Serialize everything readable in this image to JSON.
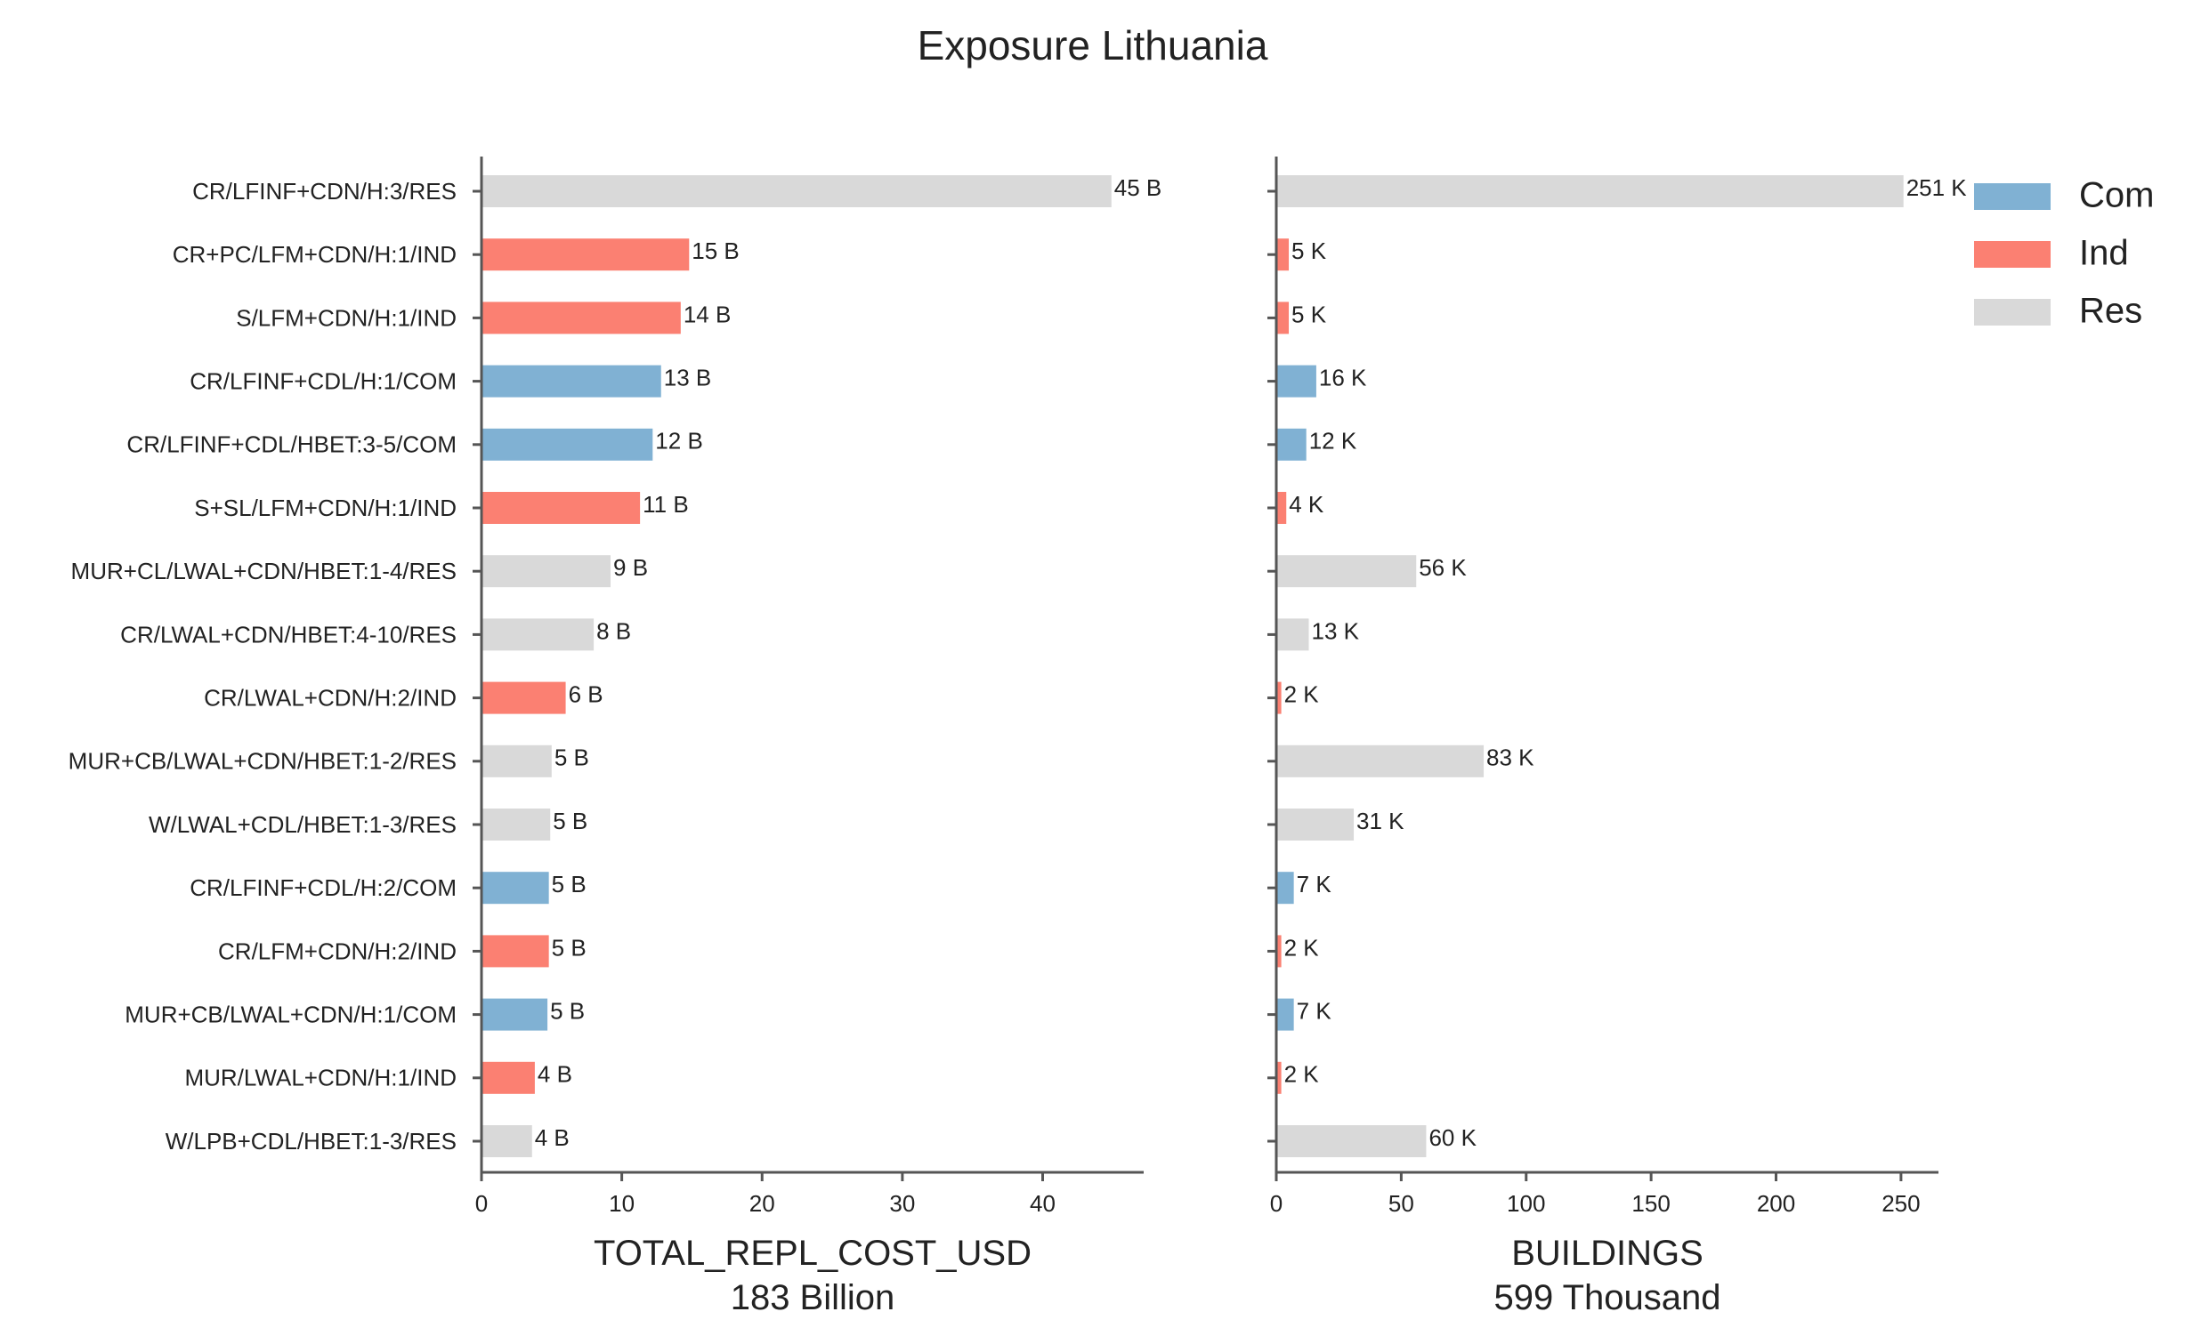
{
  "chart_data": {
    "title": "Exposure Lithuania",
    "type": "bar",
    "orientation": "horizontal",
    "categories": [
      "CR/LFINF+CDN/H:3/RES",
      "CR+PC/LFM+CDN/H:1/IND",
      "S/LFM+CDN/H:1/IND",
      "CR/LFINF+CDL/H:1/COM",
      "CR/LFINF+CDL/HBET:3-5/COM",
      "S+SL/LFM+CDN/H:1/IND",
      "MUR+CL/LWAL+CDN/HBET:1-4/RES",
      "CR/LWAL+CDN/HBET:4-10/RES",
      "CR/LWAL+CDN/H:2/IND",
      "MUR+CB/LWAL+CDN/HBET:1-2/RES",
      "W/LWAL+CDL/HBET:1-3/RES",
      "CR/LFINF+CDL/H:2/COM",
      "CR/LFM+CDN/H:2/IND",
      "MUR+CB/LWAL+CDN/H:1/COM",
      "MUR/LWAL+CDN/H:1/IND",
      "W/LPB+CDL/HBET:1-3/RES"
    ],
    "occupancy": [
      "Res",
      "Ind",
      "Ind",
      "Com",
      "Com",
      "Ind",
      "Res",
      "Res",
      "Ind",
      "Res",
      "Res",
      "Com",
      "Ind",
      "Com",
      "Ind",
      "Res"
    ],
    "colors": {
      "Com": "#80b1d3",
      "Ind": "#fb8072",
      "Res": "#d9d9d9"
    },
    "legend": {
      "position": "top-right",
      "entries": [
        "Com",
        "Ind",
        "Res"
      ]
    },
    "panels": [
      {
        "xlabel": "TOTAL_REPL_COST_USD",
        "subtitle": "183 Billion",
        "xlim": [
          0,
          47.2
        ],
        "ticks": [
          0,
          10,
          20,
          30,
          40
        ],
        "tick_labels": [
          "0",
          "10",
          "20",
          "30",
          "40"
        ],
        "values": [
          44.9,
          14.8,
          14.2,
          12.8,
          12.2,
          11.3,
          9.2,
          8.0,
          6.0,
          5.0,
          4.9,
          4.8,
          4.8,
          4.7,
          3.8,
          3.6
        ],
        "labels": [
          "45 B",
          "15 B",
          "14 B",
          "13 B",
          "12 B",
          "11 B",
          "9 B",
          "8 B",
          "6 B",
          "5 B",
          "5 B",
          "5 B",
          "5 B",
          "5 B",
          "4 B",
          "4 B"
        ]
      },
      {
        "xlabel": "BUILDINGS",
        "subtitle": "599 Thousand",
        "xlim": [
          0,
          265
        ],
        "ticks": [
          0,
          50,
          100,
          150,
          200,
          250
        ],
        "tick_labels": [
          "0",
          "50",
          "100",
          "150",
          "200",
          "250"
        ],
        "values": [
          251,
          5,
          5,
          16,
          12,
          4,
          56,
          13,
          2,
          83,
          31,
          7,
          2,
          7,
          2,
          60
        ],
        "labels": [
          "251 K",
          "5 K",
          "5 K",
          "16 K",
          "12 K",
          "4 K",
          "56 K",
          "13 K",
          "2 K",
          "83 K",
          "31 K",
          "7 K",
          "2 K",
          "7 K",
          "2 K",
          "60 K"
        ]
      }
    ]
  }
}
